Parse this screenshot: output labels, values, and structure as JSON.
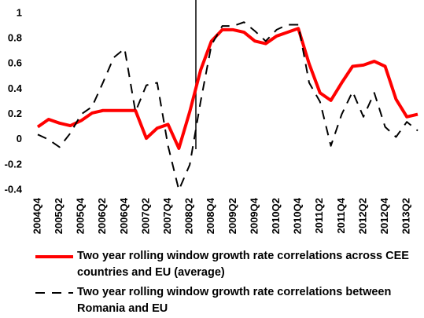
{
  "chart_data": {
    "type": "line",
    "categories": [
      "2004Q4",
      null,
      "2005Q2",
      null,
      "2005Q4",
      null,
      "2006Q2",
      null,
      "2006Q4",
      null,
      "2007Q2",
      null,
      "2007Q4",
      null,
      "2008Q2",
      null,
      "2008Q4",
      null,
      "2009Q2",
      null,
      "2009Q4",
      null,
      "2010Q2",
      null,
      "2010Q4",
      null,
      "2011Q2",
      null,
      "2011Q4",
      null,
      "2012Q2",
      null,
      "2012Q4",
      null,
      "2013Q2",
      null
    ],
    "series": [
      {
        "name": "Two year rolling window growth rate correlations across CEE countries and EU (average)",
        "color": "#ff0000",
        "dash": false,
        "values": [
          0.1,
          0.16,
          0.13,
          0.11,
          0.15,
          0.21,
          0.23,
          0.23,
          0.23,
          0.23,
          0.01,
          0.09,
          0.12,
          -0.07,
          0.22,
          0.55,
          0.78,
          0.87,
          0.87,
          0.85,
          0.78,
          0.76,
          0.82,
          0.85,
          0.88,
          0.6,
          0.37,
          0.31,
          0.45,
          0.58,
          0.59,
          0.62,
          0.58,
          0.32,
          0.18,
          0.2
        ]
      },
      {
        "name": "Two year rolling window growth rate correlations between Romania and EU",
        "color": "#000000",
        "dash": true,
        "values": [
          0.04,
          0.0,
          -0.06,
          0.05,
          0.2,
          0.26,
          0.45,
          0.65,
          0.72,
          0.22,
          0.43,
          0.45,
          -0.05,
          -0.4,
          -0.2,
          0.3,
          0.75,
          0.9,
          0.9,
          0.93,
          0.86,
          0.78,
          0.87,
          0.91,
          0.91,
          0.45,
          0.3,
          -0.05,
          0.2,
          0.38,
          0.18,
          0.37,
          0.1,
          0.02,
          0.14,
          0.07
        ]
      }
    ],
    "ylim": [
      -0.4,
      1
    ],
    "yticks": [
      -0.4,
      -0.2,
      0,
      0.2,
      0.4,
      0.6,
      0.8,
      1
    ]
  }
}
